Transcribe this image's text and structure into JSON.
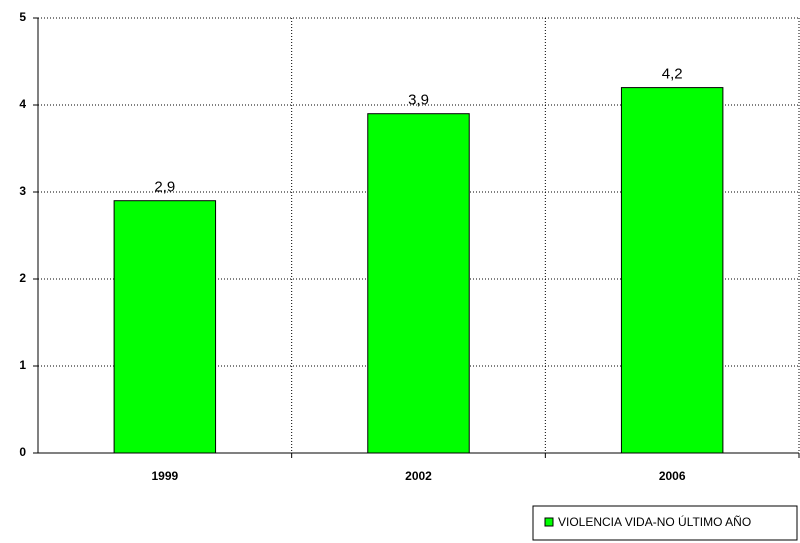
{
  "chart_data": {
    "type": "bar",
    "categories": [
      "1999",
      "2002",
      "2006"
    ],
    "series": [
      {
        "name": "VIOLENCIA VIDA-NO ÚLTIMO AÑO",
        "color": "#00ff00",
        "values": [
          2.9,
          3.9,
          4.2
        ],
        "value_labels": [
          "2,9",
          "3,9",
          "4,2"
        ]
      }
    ],
    "ylim": [
      0,
      5
    ],
    "yticks": [
      0,
      1,
      2,
      3,
      4,
      5
    ],
    "grid": true,
    "legend": "bottom-right"
  }
}
